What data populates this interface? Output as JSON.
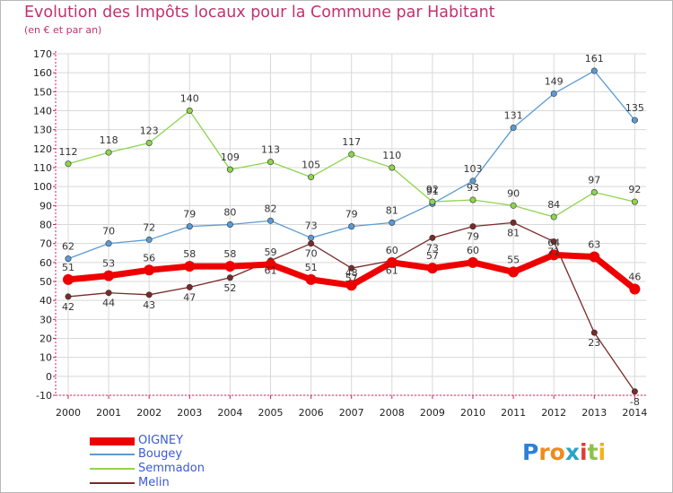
{
  "title": "Evolution des Impôts locaux pour la Commune par Habitant",
  "subtitle": "(en € et par an)",
  "colors": {
    "title": "#c0336e",
    "axis": "#d02060",
    "grid": "#d8d8d8",
    "tick_text": "#222222",
    "label_text": "#333333",
    "legend_text": "#3b5bd6"
  },
  "logo": {
    "letters": [
      "P",
      "r",
      "o",
      "x",
      "i",
      "t",
      "i"
    ],
    "letter_colors": [
      "#2f7fd8",
      "#f08a1c",
      "#f08a1c",
      "#2aa4c8",
      "#e23b3b",
      "#8bc34a",
      "#f2b21c"
    ]
  },
  "chart_data": {
    "type": "line",
    "title": "Evolution des Impôts locaux pour la Commune par Habitant",
    "subtitle": "(en € et par an)",
    "xlabel": "",
    "ylabel": "",
    "x": [
      "2000",
      "2001",
      "2002",
      "2003",
      "2004",
      "2005",
      "2006",
      "2007",
      "2008",
      "2009",
      "2010",
      "2011",
      "2012",
      "2013",
      "2014"
    ],
    "ylim": [
      -10,
      170
    ],
    "yticks": [
      "-10",
      "0",
      "10",
      "20",
      "30",
      "40",
      "50",
      "60",
      "70",
      "80",
      "90",
      "100",
      "110",
      "120",
      "130",
      "140",
      "150",
      "160",
      "170"
    ],
    "grid": true,
    "legend": "bottom-left",
    "series": [
      {
        "name": "OIGNEY",
        "color": "#ee0000",
        "values": [
          51,
          53,
          56,
          58,
          58,
          59,
          51,
          48,
          60,
          57,
          60,
          55,
          64,
          63,
          46
        ],
        "labels": [
          "51",
          "53",
          "56",
          "58",
          "58",
          "59",
          "51",
          "48",
          "60",
          "57",
          "60",
          "55",
          "64",
          "63",
          "46"
        ]
      },
      {
        "name": "Bougey",
        "color": "#5b9bd5",
        "values": [
          62,
          70,
          72,
          79,
          80,
          82,
          73,
          79,
          81,
          91,
          103,
          131,
          149,
          161,
          135
        ],
        "labels": [
          "62",
          "70",
          "72",
          "79",
          "80",
          "82",
          "73",
          "79",
          "81",
          "91",
          "103",
          "131",
          "149",
          "161",
          "135"
        ]
      },
      {
        "name": "Semmadon",
        "color": "#8ed44f",
        "values": [
          112,
          118,
          123,
          140,
          109,
          113,
          105,
          117,
          110,
          92,
          93,
          90,
          84,
          97,
          92
        ],
        "labels": [
          "112",
          "118",
          "123",
          "140",
          "109",
          "113",
          "105",
          "117",
          "110",
          "92",
          "93",
          "90",
          "84",
          "97",
          "92"
        ]
      },
      {
        "name": "Melin",
        "color": "#7a2a2a",
        "values": [
          42,
          44,
          43,
          47,
          52,
          61,
          70,
          57,
          61,
          73,
          79,
          81,
          71,
          23,
          -8
        ],
        "labels": [
          "42",
          "44",
          "43",
          "47",
          "52",
          "61",
          "70",
          "57",
          "61",
          "73",
          "79",
          "81",
          "71",
          "23",
          "-8"
        ]
      }
    ]
  }
}
